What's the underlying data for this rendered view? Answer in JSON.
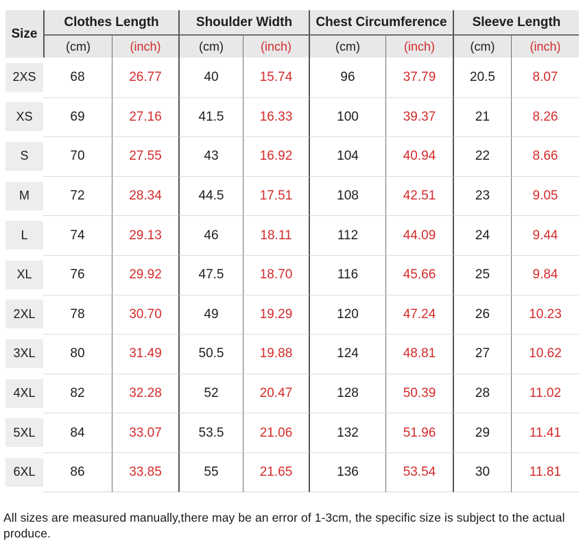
{
  "colors": {
    "accent_red": "#d42b2b",
    "header_bg": "#e8e8e8",
    "chip_bg": "#ededed"
  },
  "table": {
    "corner_label": "Size",
    "unit_cm": "(cm)",
    "unit_inch": "(inch)",
    "groups": [
      {
        "label": "Clothes Length"
      },
      {
        "label": "Shoulder Width"
      },
      {
        "label": "Chest Circumference"
      },
      {
        "label": "Sleeve Length"
      }
    ],
    "rows": [
      {
        "size": "2XS",
        "values": [
          "68",
          "26.77",
          "40",
          "15.74",
          "96",
          "37.79",
          "20.5",
          "8.07"
        ]
      },
      {
        "size": "XS",
        "values": [
          "69",
          "27.16",
          "41.5",
          "16.33",
          "100",
          "39.37",
          "21",
          "8.26"
        ]
      },
      {
        "size": "S",
        "values": [
          "70",
          "27.55",
          "43",
          "16.92",
          "104",
          "40.94",
          "22",
          "8.66"
        ]
      },
      {
        "size": "M",
        "values": [
          "72",
          "28.34",
          "44.5",
          "17.51",
          "108",
          "42.51",
          "23",
          "9.05"
        ]
      },
      {
        "size": "L",
        "values": [
          "74",
          "29.13",
          "46",
          "18.11",
          "112",
          "44.09",
          "24",
          "9.44"
        ]
      },
      {
        "size": "XL",
        "values": [
          "76",
          "29.92",
          "47.5",
          "18.70",
          "116",
          "45.66",
          "25",
          "9.84"
        ]
      },
      {
        "size": "2XL",
        "values": [
          "78",
          "30.70",
          "49",
          "19.29",
          "120",
          "47.24",
          "26",
          "10.23"
        ]
      },
      {
        "size": "3XL",
        "values": [
          "80",
          "31.49",
          "50.5",
          "19.88",
          "124",
          "48.81",
          "27",
          "10.62"
        ]
      },
      {
        "size": "4XL",
        "values": [
          "82",
          "32.28",
          "52",
          "20.47",
          "128",
          "50.39",
          "28",
          "11.02"
        ]
      },
      {
        "size": "5XL",
        "values": [
          "84",
          "33.07",
          "53.5",
          "21.06",
          "132",
          "51.96",
          "29",
          "11.41"
        ]
      },
      {
        "size": "6XL",
        "values": [
          "86",
          "33.85",
          "55",
          "21.65",
          "136",
          "53.54",
          "30",
          "11.81"
        ]
      }
    ]
  },
  "footer": {
    "note": "All sizes are measured manually,there may be an error of 1-3cm, the specific size is subject to the actual produce."
  }
}
